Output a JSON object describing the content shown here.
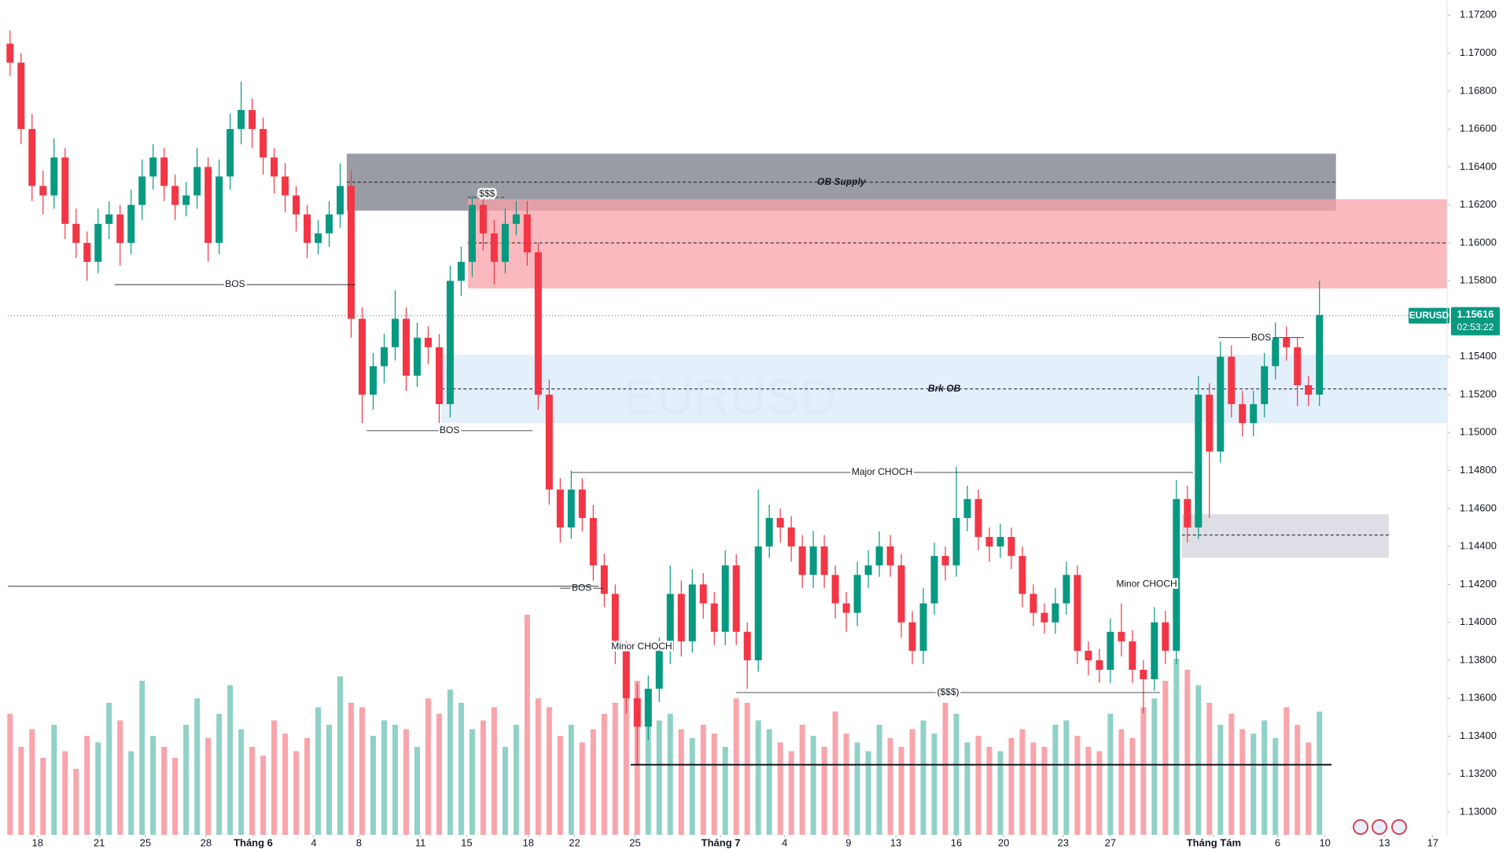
{
  "chart_data": {
    "type": "candlestick",
    "symbol": "EURUSD",
    "last_price": 1.15616,
    "countdown": "02:53:22",
    "up_color": "#089981",
    "down_color": "#f23645",
    "xlim": [
      -0.2,
      130.6
    ],
    "ylim": [
      1.1288,
      1.1728
    ],
    "yticks": [
      {
        "value": 1.13,
        "label": "1.13000"
      },
      {
        "value": 1.132,
        "label": "1.13200"
      },
      {
        "value": 1.134,
        "label": "1.13400"
      },
      {
        "value": 1.136,
        "label": "1.13600"
      },
      {
        "value": 1.138,
        "label": "1.13800"
      },
      {
        "value": 1.14,
        "label": "1.14000"
      },
      {
        "value": 1.142,
        "label": "1.14200"
      },
      {
        "value": 1.144,
        "label": "1.14400"
      },
      {
        "value": 1.146,
        "label": "1.14600"
      },
      {
        "value": 1.148,
        "label": "1.14800"
      },
      {
        "value": 1.15,
        "label": "1.15000"
      },
      {
        "value": 1.152,
        "label": "1.15200"
      },
      {
        "value": 1.154,
        "label": "1.15400"
      },
      {
        "value": 1.156,
        "label": "1.15600"
      },
      {
        "value": 1.158,
        "label": "1.15800"
      },
      {
        "value": 1.16,
        "label": "1.16000"
      },
      {
        "value": 1.162,
        "label": "1.16200"
      },
      {
        "value": 1.164,
        "label": "1.16400"
      },
      {
        "value": 1.166,
        "label": "1.16600"
      },
      {
        "value": 1.168,
        "label": "1.16800"
      },
      {
        "value": 1.17,
        "label": "1.17000"
      },
      {
        "value": 1.172,
        "label": "1.17200"
      }
    ],
    "xticks": [
      {
        "value": 2.5,
        "label": "18"
      },
      {
        "value": 8.1,
        "label": "21"
      },
      {
        "value": 12.3,
        "label": "25"
      },
      {
        "value": 17.8,
        "label": "28"
      },
      {
        "value": 22.1,
        "label": "Tháng 6"
      },
      {
        "value": 27.6,
        "label": "4"
      },
      {
        "value": 31.7,
        "label": "8"
      },
      {
        "value": 37.3,
        "label": "11"
      },
      {
        "value": 41.5,
        "label": "15"
      },
      {
        "value": 47.1,
        "label": "18"
      },
      {
        "value": 51.3,
        "label": "22"
      },
      {
        "value": 56.8,
        "label": "25"
      },
      {
        "value": 64.6,
        "label": "Tháng 7"
      },
      {
        "value": 70.4,
        "label": "4"
      },
      {
        "value": 76.2,
        "label": "9"
      },
      {
        "value": 80.5,
        "label": "13"
      },
      {
        "value": 86.0,
        "label": "16"
      },
      {
        "value": 90.3,
        "label": "20"
      },
      {
        "value": 95.7,
        "label": "23"
      },
      {
        "value": 100.0,
        "label": "27"
      },
      {
        "value": 109.4,
        "label": "Tháng Tám"
      },
      {
        "value": 115.2,
        "label": "6"
      },
      {
        "value": 119.5,
        "label": "10"
      },
      {
        "value": 124.9,
        "label": "13"
      },
      {
        "value": 129.3,
        "label": "17"
      }
    ],
    "candles": [
      [
        1.1705,
        1.1712,
        1.1688,
        1.1695
      ],
      [
        1.1695,
        1.17,
        1.1652,
        1.166
      ],
      [
        1.166,
        1.1668,
        1.1622,
        1.163
      ],
      [
        1.163,
        1.1638,
        1.1615,
        1.1625
      ],
      [
        1.1625,
        1.1655,
        1.1618,
        1.1645
      ],
      [
        1.1645,
        1.165,
        1.1602,
        1.161
      ],
      [
        1.161,
        1.1618,
        1.1592,
        1.16
      ],
      [
        1.16,
        1.1606,
        1.158,
        1.159
      ],
      [
        1.159,
        1.1618,
        1.1584,
        1.161
      ],
      [
        1.161,
        1.1622,
        1.1602,
        1.1615
      ],
      [
        1.1615,
        1.162,
        1.1588,
        1.16
      ],
      [
        1.16,
        1.1628,
        1.1594,
        1.162
      ],
      [
        1.162,
        1.1644,
        1.1612,
        1.1635
      ],
      [
        1.1635,
        1.1652,
        1.1628,
        1.1645
      ],
      [
        1.1645,
        1.165,
        1.1622,
        1.163
      ],
      [
        1.163,
        1.1636,
        1.1612,
        1.162
      ],
      [
        1.162,
        1.1632,
        1.1614,
        1.1625
      ],
      [
        1.1625,
        1.165,
        1.1618,
        1.164
      ],
      [
        1.164,
        1.1645,
        1.159,
        1.16
      ],
      [
        1.16,
        1.1644,
        1.1594,
        1.1635
      ],
      [
        1.1635,
        1.1668,
        1.1628,
        1.166
      ],
      [
        1.166,
        1.1685,
        1.1652,
        1.167
      ],
      [
        1.167,
        1.1676,
        1.165,
        1.166
      ],
      [
        1.166,
        1.1666,
        1.1636,
        1.1645
      ],
      [
        1.1645,
        1.165,
        1.1626,
        1.1635
      ],
      [
        1.1635,
        1.1642,
        1.1616,
        1.1625
      ],
      [
        1.1625,
        1.163,
        1.1606,
        1.1615
      ],
      [
        1.1615,
        1.162,
        1.1592,
        1.16
      ],
      [
        1.16,
        1.1612,
        1.1594,
        1.1605
      ],
      [
        1.1605,
        1.1622,
        1.1598,
        1.1615
      ],
      [
        1.1615,
        1.1642,
        1.1608,
        1.163
      ],
      [
        1.163,
        1.1638,
        1.155,
        1.156
      ],
      [
        1.156,
        1.1566,
        1.1505,
        1.152
      ],
      [
        1.152,
        1.1542,
        1.1512,
        1.1535
      ],
      [
        1.1535,
        1.1552,
        1.1526,
        1.1545
      ],
      [
        1.1545,
        1.1575,
        1.1538,
        1.156
      ],
      [
        1.156,
        1.1566,
        1.1522,
        1.153
      ],
      [
        1.153,
        1.1558,
        1.1524,
        1.155
      ],
      [
        1.155,
        1.1556,
        1.1536,
        1.1545
      ],
      [
        1.1545,
        1.1552,
        1.1505,
        1.1515
      ],
      [
        1.1515,
        1.1588,
        1.1508,
        1.158
      ],
      [
        1.158,
        1.1598,
        1.1572,
        1.159
      ],
      [
        1.159,
        1.1625,
        1.1582,
        1.162
      ],
      [
        1.162,
        1.1626,
        1.1596,
        1.1605
      ],
      [
        1.1605,
        1.1612,
        1.1578,
        1.159
      ],
      [
        1.159,
        1.1618,
        1.1584,
        1.161
      ],
      [
        1.161,
        1.1622,
        1.1604,
        1.1615
      ],
      [
        1.1615,
        1.1622,
        1.1588,
        1.1595
      ],
      [
        1.1595,
        1.16,
        1.1512,
        1.152
      ],
      [
        1.152,
        1.1528,
        1.1462,
        1.147
      ],
      [
        1.147,
        1.1476,
        1.1442,
        1.145
      ],
      [
        1.145,
        1.148,
        1.1444,
        1.147
      ],
      [
        1.147,
        1.1476,
        1.1448,
        1.1455
      ],
      [
        1.1455,
        1.1462,
        1.1422,
        1.143
      ],
      [
        1.143,
        1.1436,
        1.1408,
        1.1415
      ],
      [
        1.1415,
        1.142,
        1.1378,
        1.1385
      ],
      [
        1.1385,
        1.139,
        1.1352,
        1.136
      ],
      [
        1.136,
        1.1368,
        1.1325,
        1.1345
      ],
      [
        1.1345,
        1.1372,
        1.1338,
        1.1365
      ],
      [
        1.1365,
        1.1392,
        1.1358,
        1.1385
      ],
      [
        1.1385,
        1.143,
        1.1378,
        1.1415
      ],
      [
        1.1415,
        1.1422,
        1.1382,
        1.139
      ],
      [
        1.139,
        1.1428,
        1.1384,
        1.142
      ],
      [
        1.142,
        1.1426,
        1.1402,
        1.141
      ],
      [
        1.141,
        1.1416,
        1.1388,
        1.1395
      ],
      [
        1.1395,
        1.1438,
        1.1388,
        1.143
      ],
      [
        1.143,
        1.1436,
        1.1388,
        1.1395
      ],
      [
        1.1395,
        1.14,
        1.1365,
        1.138
      ],
      [
        1.138,
        1.147,
        1.1374,
        1.144
      ],
      [
        1.144,
        1.1462,
        1.1434,
        1.1455
      ],
      [
        1.1455,
        1.146,
        1.1442,
        1.145
      ],
      [
        1.145,
        1.1456,
        1.1432,
        1.144
      ],
      [
        1.144,
        1.1446,
        1.1418,
        1.1425
      ],
      [
        1.1425,
        1.1448,
        1.1418,
        1.144
      ],
      [
        1.144,
        1.1446,
        1.1418,
        1.1425
      ],
      [
        1.1425,
        1.143,
        1.1402,
        1.141
      ],
      [
        1.141,
        1.1416,
        1.1395,
        1.1405
      ],
      [
        1.1405,
        1.1432,
        1.1398,
        1.1425
      ],
      [
        1.1425,
        1.1438,
        1.1418,
        1.143
      ],
      [
        1.143,
        1.1448,
        1.1424,
        1.144
      ],
      [
        1.144,
        1.1446,
        1.1424,
        1.143
      ],
      [
        1.143,
        1.1436,
        1.1392,
        1.14
      ],
      [
        1.14,
        1.1406,
        1.1378,
        1.1385
      ],
      [
        1.1385,
        1.1418,
        1.1378,
        1.141
      ],
      [
        1.141,
        1.1442,
        1.1404,
        1.1435
      ],
      [
        1.1435,
        1.144,
        1.1422,
        1.143
      ],
      [
        1.143,
        1.1482,
        1.1424,
        1.1455
      ],
      [
        1.1455,
        1.1472,
        1.1448,
        1.1465
      ],
      [
        1.1465,
        1.147,
        1.1438,
        1.1445
      ],
      [
        1.1445,
        1.145,
        1.1432,
        1.144
      ],
      [
        1.144,
        1.1452,
        1.1434,
        1.1445
      ],
      [
        1.1445,
        1.145,
        1.1428,
        1.1435
      ],
      [
        1.1435,
        1.144,
        1.1408,
        1.1415
      ],
      [
        1.1415,
        1.142,
        1.1398,
        1.1405
      ],
      [
        1.1405,
        1.141,
        1.1394,
        1.14
      ],
      [
        1.14,
        1.1418,
        1.1394,
        1.141
      ],
      [
        1.141,
        1.1432,
        1.1404,
        1.1425
      ],
      [
        1.1425,
        1.143,
        1.1378,
        1.1385
      ],
      [
        1.1385,
        1.139,
        1.1372,
        1.138
      ],
      [
        1.138,
        1.1386,
        1.1368,
        1.1375
      ],
      [
        1.1375,
        1.1402,
        1.1368,
        1.1395
      ],
      [
        1.1395,
        1.141,
        1.1382,
        1.139
      ],
      [
        1.139,
        1.1396,
        1.1368,
        1.1375
      ],
      [
        1.1375,
        1.138,
        1.1352,
        1.137
      ],
      [
        1.137,
        1.1408,
        1.1364,
        1.14
      ],
      [
        1.14,
        1.1406,
        1.1378,
        1.1385
      ],
      [
        1.1385,
        1.1475,
        1.1378,
        1.1465
      ],
      [
        1.1465,
        1.1472,
        1.1442,
        1.145
      ],
      [
        1.145,
        1.153,
        1.1444,
        1.152
      ],
      [
        1.152,
        1.1526,
        1.1455,
        1.149
      ],
      [
        1.149,
        1.1548,
        1.1484,
        1.154
      ],
      [
        1.154,
        1.1546,
        1.1508,
        1.1515
      ],
      [
        1.1515,
        1.1522,
        1.1498,
        1.1505
      ],
      [
        1.1505,
        1.1522,
        1.1498,
        1.1515
      ],
      [
        1.1515,
        1.1542,
        1.1508,
        1.1535
      ],
      [
        1.1535,
        1.1558,
        1.1528,
        1.155
      ],
      [
        1.155,
        1.1556,
        1.1538,
        1.1545
      ],
      [
        1.1545,
        1.155,
        1.1514,
        1.1525
      ],
      [
        1.1525,
        1.153,
        1.1514,
        1.152
      ],
      [
        1.152,
        1.158,
        1.1514,
        1.1562
      ]
    ],
    "volumes": [
      55,
      40,
      48,
      35,
      50,
      38,
      30,
      45,
      42,
      60,
      52,
      38,
      70,
      45,
      40,
      35,
      50,
      62,
      44,
      55,
      68,
      48,
      40,
      36,
      52,
      46,
      38,
      44,
      58,
      50,
      72,
      60,
      58,
      45,
      52,
      50,
      48,
      40,
      62,
      55,
      66,
      60,
      48,
      52,
      58,
      40,
      50,
      100,
      62,
      58,
      45,
      50,
      42,
      48,
      55,
      60,
      64,
      70,
      58,
      52,
      55,
      48,
      44,
      50,
      46,
      40,
      62,
      60,
      52,
      48,
      42,
      38,
      50,
      45,
      40,
      56,
      46,
      42,
      38,
      50,
      44,
      40,
      48,
      52,
      46,
      60,
      55,
      42,
      45,
      40,
      38,
      44,
      48,
      42,
      40,
      50,
      52,
      45,
      40,
      38,
      55,
      48,
      44,
      58,
      62,
      70,
      80,
      75,
      68,
      60,
      50,
      55,
      48,
      46,
      52,
      44,
      58,
      50,
      42,
      56
    ],
    "zones": [
      {
        "label": "OB Supply",
        "top": 1.1647,
        "bottom": 1.1617,
        "mid": 1.1632,
        "from": 30.6,
        "to": 120.5,
        "color": "#787b86"
      },
      {
        "top": 1.1623,
        "bottom": 1.1576,
        "mid": 1.16,
        "from": 41.6,
        "to": 130.6,
        "color": "#f7a1a8"
      },
      {
        "label": "Brk OB",
        "top": 1.1541,
        "bottom": 1.1505,
        "mid": 1.1523,
        "from": 39.2,
        "to": 130.6,
        "color": "#dbeafb"
      },
      {
        "top": 1.1457,
        "bottom": 1.1434,
        "mid": 1.1446,
        "from": 106.5,
        "to": 125.3,
        "color": "#d1d4dc"
      }
    ],
    "levels": [
      {
        "label": "BOS",
        "price": 1.1578,
        "from": 9.5,
        "to": 31.4
      },
      {
        "label": "BOS",
        "price": 1.1501,
        "from": 32.4,
        "to": 47.5
      },
      {
        "label": "BOS",
        "price": 1.1418,
        "from": 50,
        "to": 53.9
      },
      {
        "price": 1.1419,
        "from": -0.2,
        "to": 53.5
      },
      {
        "label": "Major CHOCH",
        "price": 1.1479,
        "from": 51,
        "to": 107.5
      },
      {
        "label": "($$$)",
        "price": 1.1363,
        "from": 66,
        "to": 104.5
      },
      {
        "label": "BOS",
        "price": 1.155,
        "from": 109.8,
        "to": 117.6
      },
      {
        "label": "$$$",
        "price": 1.1624,
        "from": 41.6,
        "to": 45.1,
        "style": "dashed"
      },
      {
        "price": 1.1325,
        "from": 56.4,
        "to": 120.1,
        "style": "thick"
      }
    ],
    "notes": [
      {
        "text": "Minor CHOCH",
        "x": 57.4,
        "price": 1.1387
      },
      {
        "text": "Minor CHOCH",
        "x": 103.3,
        "price": 1.142
      }
    ]
  }
}
